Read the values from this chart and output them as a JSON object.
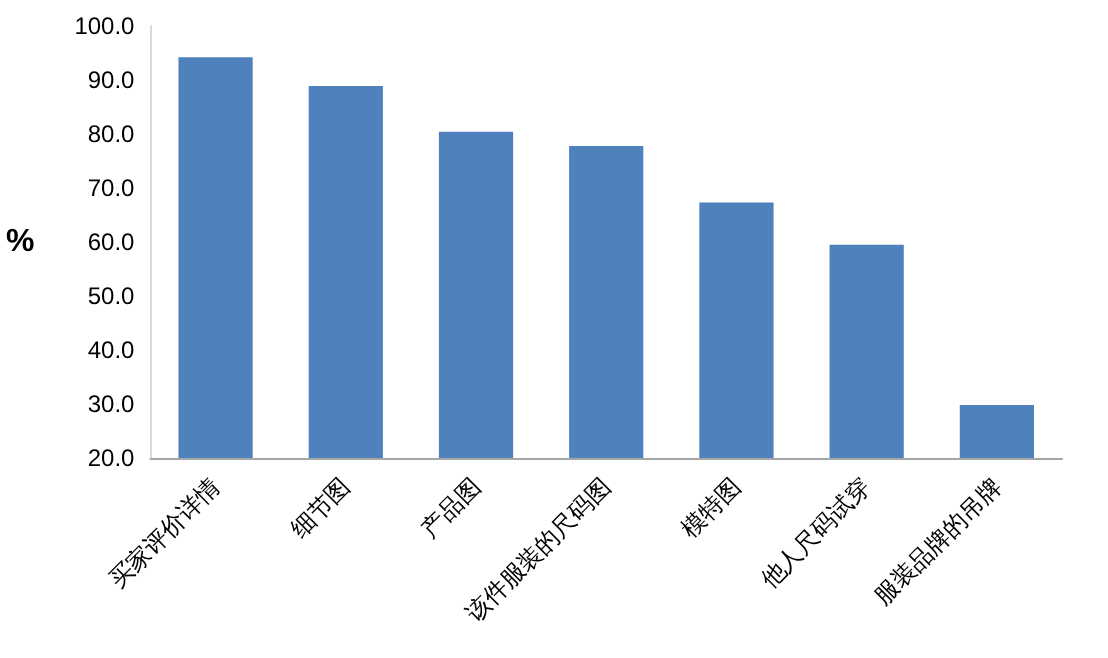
{
  "chart_data": {
    "type": "bar",
    "ylabel": "%",
    "categories": [
      "买家评价详情",
      "细节图",
      "产品图",
      "该件服装的尺码图",
      "模特图",
      "他人尺码试穿",
      "服装品牌的吊牌"
    ],
    "values": [
      94.2,
      88.9,
      80.4,
      77.8,
      67.3,
      59.5,
      29.8
    ],
    "color": "#4f81bd",
    "ylim": [
      20,
      100
    ],
    "yticks": [
      {
        "value": 20,
        "label": "20.0"
      },
      {
        "value": 30,
        "label": "30.0"
      },
      {
        "value": 40,
        "label": "40.0"
      },
      {
        "value": 50,
        "label": "50.0"
      },
      {
        "value": 60,
        "label": "60.0"
      },
      {
        "value": 70,
        "label": "70.0"
      },
      {
        "value": 80,
        "label": "80.0"
      },
      {
        "value": 90,
        "label": "90.0"
      },
      {
        "value": 100,
        "label": "100.0"
      }
    ],
    "grid": false
  }
}
